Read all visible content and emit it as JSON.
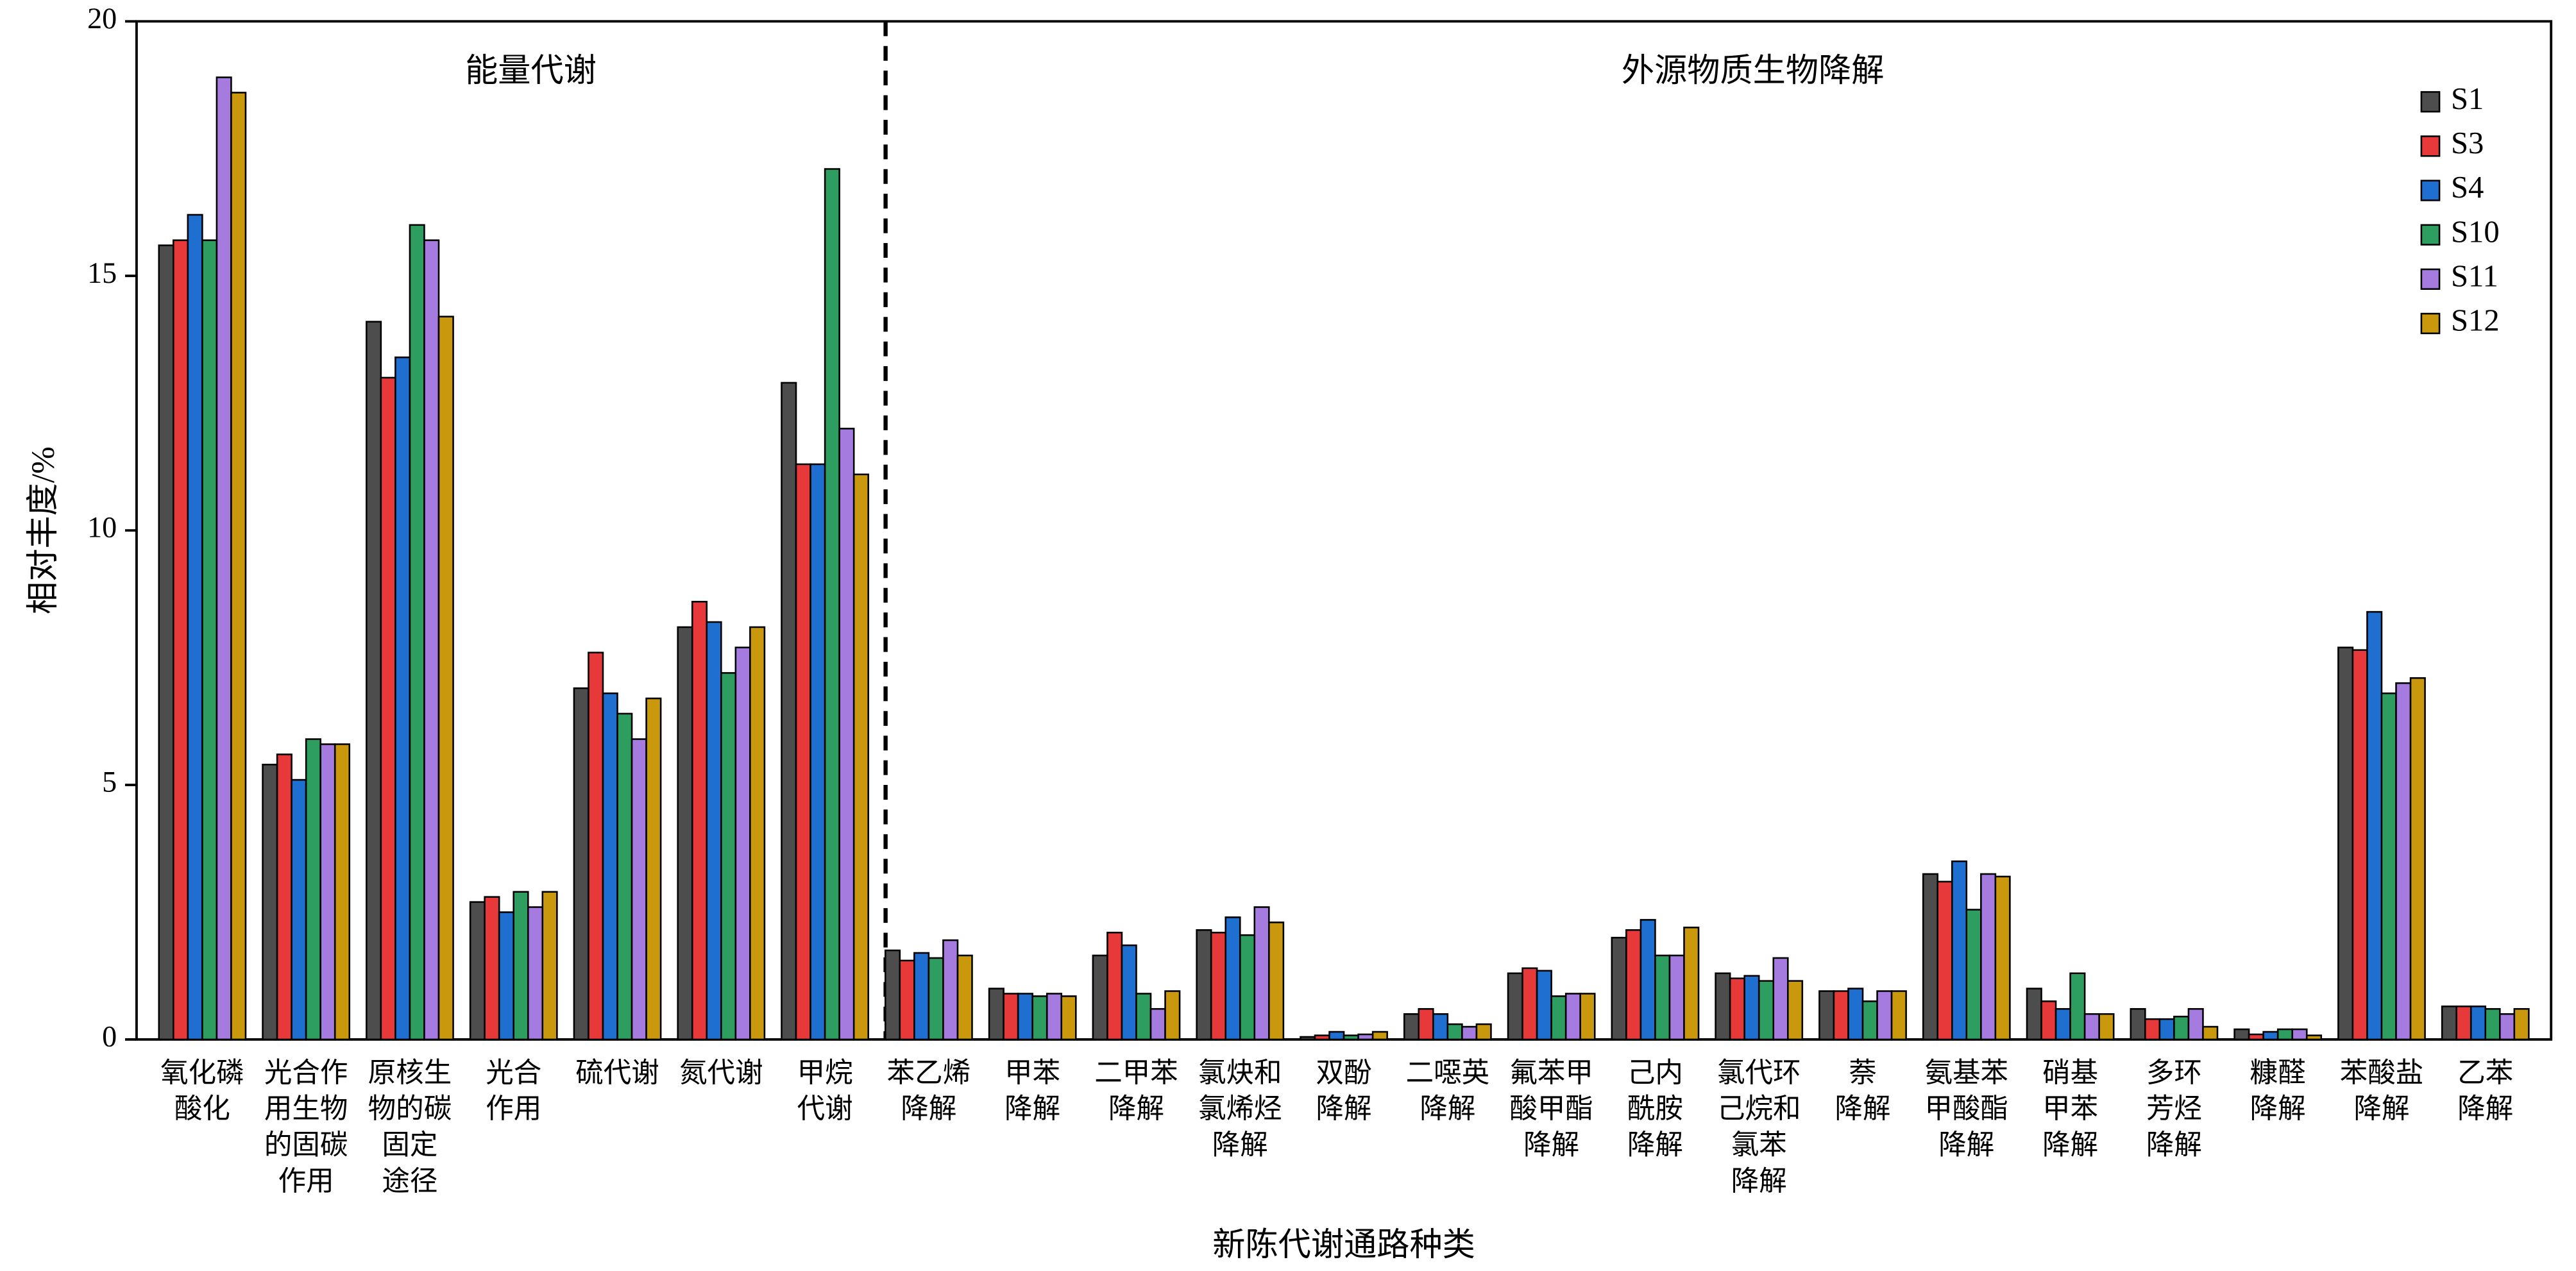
{
  "chart_data": {
    "type": "bar",
    "ylabel": "相对丰度/%",
    "xlabel": "新陈代谢通路种类",
    "annotations": [
      "能量代谢",
      "外源物质生物降解"
    ],
    "categories": [
      "氧化磷\n酸化",
      "光合作\n用生物\n的固碳\n作用",
      "原核生\n物的碳\n固定\n途径",
      "光合\n作用",
      "硫代谢",
      "氮代谢",
      "甲烷\n代谢",
      "苯乙烯\n降解",
      "甲苯\n降解",
      "二甲苯\n降解",
      "氯炔和\n氯烯烃\n降解",
      "双酚\n降解",
      "二噁英\n降解",
      "氟苯甲\n酸甲酯\n降解",
      "己内\n酰胺\n降解",
      "氯代环\n己烷和\n氯苯\n降解",
      "萘\n降解",
      "氨基苯\n甲酸酯\n降解",
      "硝基\n甲苯\n降解",
      "多环\n芳烃\n降解",
      "糠醛\n降解",
      "苯酸盐\n降解",
      "乙苯\n降解"
    ],
    "series": [
      {
        "name": "S1",
        "color": "#4d4d4d",
        "values": [
          15.6,
          5.4,
          14.1,
          2.7,
          6.9,
          8.1,
          12.9,
          1.75,
          1.0,
          1.65,
          2.15,
          0.05,
          0.5,
          1.3,
          2.0,
          1.3,
          0.95,
          3.25,
          1.0,
          0.6,
          0.2,
          7.7,
          0.65
        ]
      },
      {
        "name": "S3",
        "color": "#e8393a",
        "values": [
          15.7,
          5.6,
          13.0,
          2.8,
          7.6,
          8.6,
          11.3,
          1.55,
          0.9,
          2.1,
          2.1,
          0.08,
          0.6,
          1.4,
          2.15,
          1.2,
          0.95,
          3.1,
          0.75,
          0.4,
          0.1,
          7.65,
          0.65
        ]
      },
      {
        "name": "S4",
        "color": "#1f6fd1",
        "values": [
          16.2,
          5.1,
          13.4,
          2.5,
          6.8,
          8.2,
          11.3,
          1.7,
          0.9,
          1.85,
          2.4,
          0.15,
          0.5,
          1.35,
          2.35,
          1.25,
          1.0,
          3.5,
          0.6,
          0.4,
          0.15,
          8.4,
          0.65
        ]
      },
      {
        "name": "S10",
        "color": "#2e9e60",
        "values": [
          15.7,
          5.9,
          16.0,
          2.9,
          6.4,
          7.2,
          17.1,
          1.6,
          0.85,
          0.9,
          2.05,
          0.08,
          0.3,
          0.85,
          1.65,
          1.15,
          0.75,
          2.55,
          1.3,
          0.45,
          0.2,
          6.8,
          0.6
        ]
      },
      {
        "name": "S11",
        "color": "#a57be0",
        "values": [
          18.9,
          5.8,
          15.7,
          2.6,
          5.9,
          7.7,
          12.0,
          1.95,
          0.9,
          0.6,
          2.6,
          0.1,
          0.25,
          0.9,
          1.65,
          1.6,
          0.95,
          3.25,
          0.5,
          0.6,
          0.2,
          7.0,
          0.5
        ]
      },
      {
        "name": "S12",
        "color": "#c9980c",
        "values": [
          18.6,
          5.8,
          14.2,
          2.9,
          6.7,
          8.1,
          11.1,
          1.65,
          0.85,
          0.95,
          2.3,
          0.15,
          0.3,
          0.9,
          2.2,
          1.15,
          0.95,
          3.2,
          0.5,
          0.25,
          0.08,
          7.1,
          0.6
        ]
      }
    ],
    "ylim": [
      0,
      20
    ],
    "yticks": [
      0,
      5,
      10,
      15,
      20
    ],
    "legend": "upper right"
  }
}
